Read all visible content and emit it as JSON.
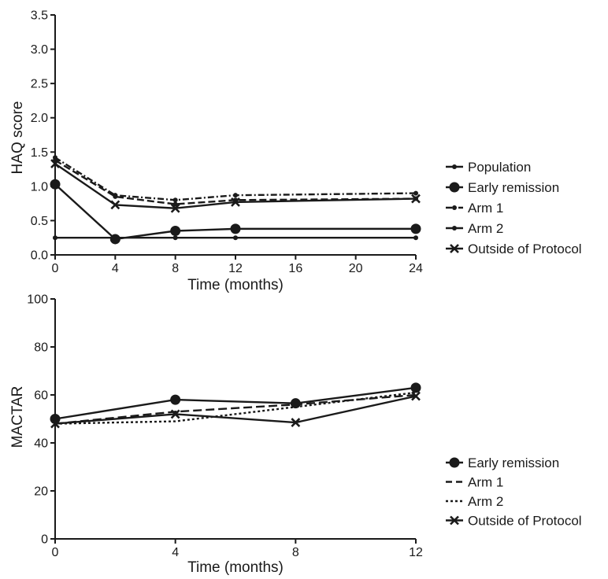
{
  "chart_data": [
    {
      "type": "line",
      "xlabel": "Time (months)",
      "ylabel": "HAQ score",
      "xlim": [
        0,
        24
      ],
      "ylim": [
        0,
        3.5
      ],
      "xticks": [
        "0",
        "4",
        "8",
        "12",
        "16",
        "20",
        "24"
      ],
      "yticks": [
        "0.0",
        "0.5",
        "1.0",
        "1.5",
        "2.0",
        "2.5",
        "3.0",
        "3.5"
      ],
      "legend_position": "right",
      "series": [
        {
          "name": "Population",
          "style": "solid-small-dot",
          "x": [
            0,
            4,
            8,
            12,
            24
          ],
          "y": [
            0.25,
            0.25,
            0.25,
            0.25,
            0.25
          ]
        },
        {
          "name": "Early remission",
          "style": "solid-big-dot",
          "x": [
            0,
            4,
            8,
            12,
            24
          ],
          "y": [
            1.03,
            0.23,
            0.35,
            0.38,
            0.38
          ]
        },
        {
          "name": "Arm 1",
          "style": "dashdot-small-dot",
          "x": [
            0,
            4,
            8,
            12,
            24
          ],
          "y": [
            1.42,
            0.87,
            0.8,
            0.87,
            0.9
          ]
        },
        {
          "name": "Arm 2",
          "style": "dashed-small-dot",
          "x": [
            0,
            4,
            8,
            12,
            24
          ],
          "y": [
            1.38,
            0.85,
            0.74,
            0.8,
            0.82
          ]
        },
        {
          "name": "Outside of Protocol",
          "style": "solid-x",
          "x": [
            0,
            4,
            8,
            12,
            24
          ],
          "y": [
            1.33,
            0.73,
            0.68,
            0.77,
            0.82
          ]
        }
      ]
    },
    {
      "type": "line",
      "xlabel": "Time (months)",
      "ylabel": "MACTAR",
      "xlim": [
        0,
        12
      ],
      "ylim": [
        0,
        100
      ],
      "xticks": [
        "0",
        "4",
        "8",
        "12"
      ],
      "yticks": [
        "0",
        "20",
        "40",
        "60",
        "80",
        "100"
      ],
      "legend_position": "right",
      "series": [
        {
          "name": "Early remission",
          "style": "solid-big-dot",
          "x": [
            0,
            4,
            8,
            12
          ],
          "y": [
            50,
            58,
            56.5,
            63
          ]
        },
        {
          "name": "Arm 1",
          "style": "dashed",
          "x": [
            0,
            4,
            8,
            12
          ],
          "y": [
            48,
            53,
            56,
            60
          ]
        },
        {
          "name": "Arm 2",
          "style": "dotted",
          "x": [
            0,
            4,
            8,
            12
          ],
          "y": [
            48,
            49,
            55,
            61
          ]
        },
        {
          "name": "Outside of Protocol",
          "style": "solid-x",
          "x": [
            0,
            4,
            8,
            12
          ],
          "y": [
            48,
            52,
            48.5,
            59.5
          ]
        }
      ]
    }
  ]
}
